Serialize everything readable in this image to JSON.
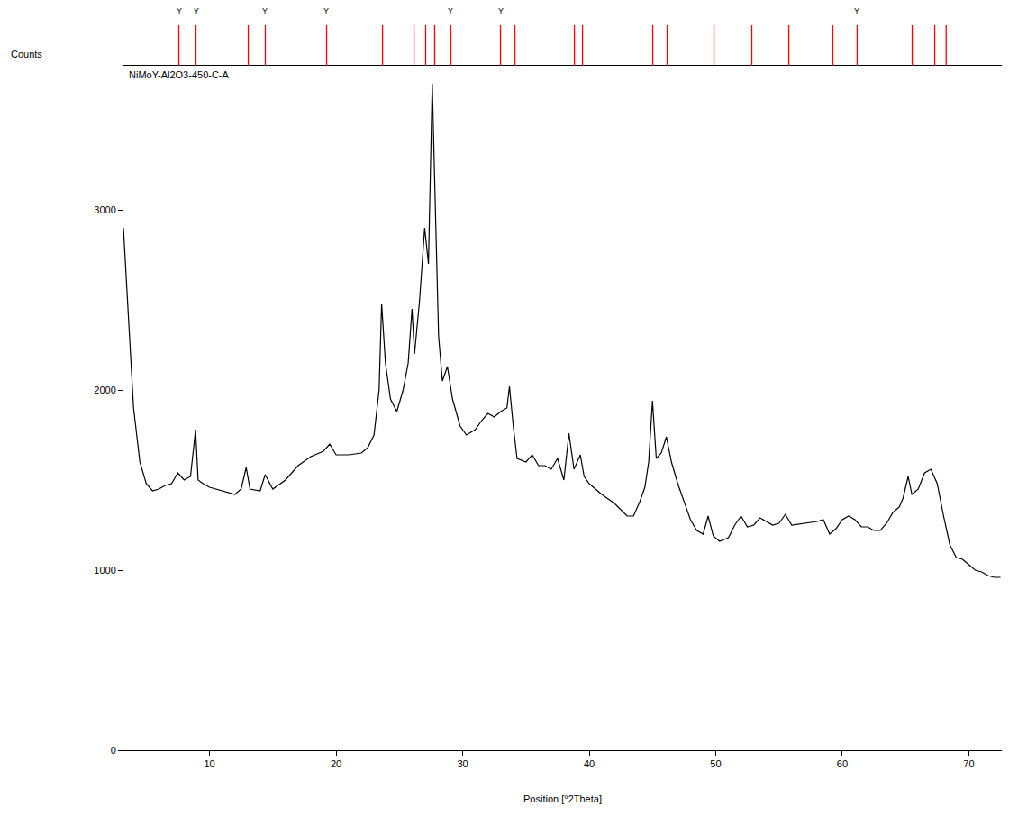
{
  "chart_data": {
    "type": "line",
    "title": "NiMoY-Al2O3-450-C-A",
    "xlabel": "Position [°2Theta]",
    "ylabel": "Counts",
    "x": [
      3.2,
      3.5,
      4.0,
      4.5,
      5.0,
      5.5,
      6.0,
      6.5,
      7.0,
      7.5,
      8.0,
      8.5,
      8.9,
      9.1,
      9.5,
      10.0,
      11.0,
      12.0,
      12.5,
      12.9,
      13.2,
      14.0,
      14.4,
      15.0,
      16.0,
      17.0,
      18.0,
      19.0,
      19.5,
      20.0,
      21.0,
      22.0,
      22.5,
      23.0,
      23.4,
      23.6,
      23.9,
      24.3,
      24.8,
      25.3,
      25.7,
      26.0,
      26.2,
      26.6,
      27.0,
      27.3,
      27.6,
      27.9,
      28.1,
      28.4,
      28.8,
      29.2,
      29.8,
      30.3,
      31.0,
      31.5,
      32.0,
      32.5,
      33.0,
      33.5,
      33.7,
      34.0,
      34.3,
      35.0,
      35.5,
      36.0,
      36.5,
      37.0,
      37.5,
      38.0,
      38.4,
      38.8,
      39.3,
      39.6,
      40.0,
      41.0,
      42.0,
      43.0,
      43.5,
      44.0,
      44.4,
      44.7,
      45.0,
      45.3,
      45.7,
      46.1,
      46.5,
      47.0,
      47.5,
      48.0,
      48.5,
      49.0,
      49.4,
      49.8,
      50.3,
      51.0,
      51.5,
      52.0,
      52.5,
      53.0,
      53.5,
      54.0,
      54.5,
      55.0,
      55.5,
      56.0,
      57.0,
      58.0,
      58.5,
      59.0,
      59.5,
      60.0,
      60.5,
      61.0,
      61.5,
      62.0,
      62.5,
      63.0,
      63.5,
      64.0,
      64.5,
      64.8,
      65.2,
      65.5,
      66.0,
      66.5,
      67.0,
      67.5,
      68.0,
      68.5,
      69.0,
      69.5,
      70.0,
      70.5,
      71.0,
      71.5,
      72.0,
      72.5
    ],
    "values": [
      2900,
      2500,
      1900,
      1600,
      1480,
      1440,
      1450,
      1470,
      1480,
      1540,
      1500,
      1520,
      1780,
      1500,
      1480,
      1460,
      1440,
      1420,
      1450,
      1570,
      1450,
      1440,
      1530,
      1450,
      1500,
      1580,
      1630,
      1660,
      1700,
      1640,
      1640,
      1650,
      1680,
      1750,
      2000,
      2480,
      2150,
      1950,
      1880,
      2000,
      2150,
      2450,
      2200,
      2500,
      2900,
      2700,
      3700,
      2800,
      2300,
      2050,
      2130,
      1950,
      1800,
      1750,
      1780,
      1830,
      1870,
      1850,
      1880,
      1900,
      2020,
      1800,
      1620,
      1600,
      1640,
      1580,
      1580,
      1560,
      1620,
      1500,
      1760,
      1560,
      1640,
      1520,
      1480,
      1420,
      1370,
      1300,
      1300,
      1380,
      1460,
      1600,
      1940,
      1620,
      1650,
      1740,
      1600,
      1480,
      1380,
      1280,
      1220,
      1200,
      1300,
      1190,
      1160,
      1180,
      1250,
      1300,
      1240,
      1250,
      1290,
      1270,
      1250,
      1260,
      1310,
      1250,
      1260,
      1270,
      1280,
      1200,
      1230,
      1280,
      1300,
      1280,
      1240,
      1240,
      1220,
      1220,
      1260,
      1320,
      1350,
      1400,
      1520,
      1420,
      1450,
      1540,
      1560,
      1480,
      1300,
      1140,
      1070,
      1060,
      1030,
      1000,
      990,
      970,
      960,
      960
    ],
    "color": "#000000",
    "xlim": [
      3.2,
      72.6
    ],
    "ylim": [
      0,
      3800
    ],
    "xticks": [
      10,
      20,
      30,
      40,
      50,
      60,
      70
    ],
    "yticks": [
      0,
      1000,
      2000,
      3000
    ],
    "grid": false,
    "reference_peaks": {
      "x": [
        7.58,
        8.93,
        13.06,
        14.41,
        19.25,
        23.67,
        26.16,
        27.08,
        27.79,
        29.07,
        32.99,
        34.13,
        38.83,
        39.47,
        45.02,
        46.16,
        49.86,
        52.85,
        55.77,
        59.25,
        61.17,
        65.52,
        67.3,
        68.2
      ],
      "labels": [
        "Y",
        "Y",
        null,
        "Y",
        "Y",
        null,
        null,
        null,
        null,
        "Y",
        "Y",
        null,
        null,
        null,
        null,
        null,
        null,
        null,
        null,
        null,
        "Y",
        null,
        null,
        null
      ],
      "color": "#ff0000"
    }
  }
}
